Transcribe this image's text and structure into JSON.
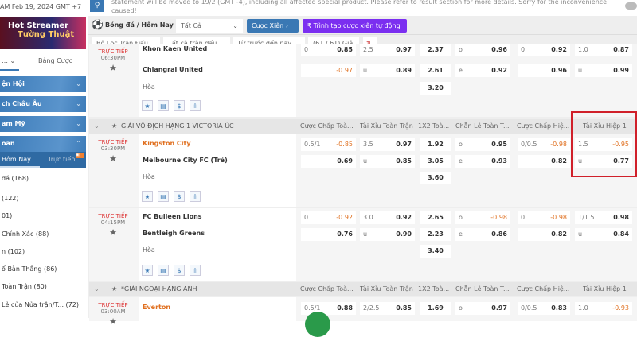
{
  "topbar": {
    "datetime": "AM Feb 19, 2024 GMT +7",
    "notice": "statement will be moved to 19/2 (GMT -4), including all affected special product. Please refer to result section for more details. Sorry for the inconvenience caused!"
  },
  "sidebar": {
    "banner_line1": "Hot Streamer",
    "banner_line2": "Tường Thuật",
    "tab_bet": "Bảng Cược",
    "sections": [
      "ện Hội",
      "ch Châu Âu",
      "am Mỹ",
      "oan"
    ],
    "subtabs": {
      "today": "Hôm Nay",
      "live": "Trực tiếp"
    },
    "items": [
      "đá  (168)",
      "(122)",
      "01)",
      "Chính Xác  (88)",
      "n  (102)",
      "ố Bàn Thắng  (86)",
      "Toàn Trận  (80)",
      "Lẻ của Nửa trận/T...   (72)"
    ]
  },
  "header": {
    "breadcrumb": "Bóng đá / Hôm Nay",
    "select": "Tất Cả",
    "parlay": "Cược Xiên",
    "auto_parlay": "Trình tạo cược xiên tự động"
  },
  "filters": {
    "match_filter": "Bộ Lọc Trận Đấu",
    "all_matches": "Tất cả trận đấu",
    "time": "Từ trước đến nay",
    "count": "(61 / 61) Giải"
  },
  "columns": [
    "Cược Chấp Toà...",
    "Tài Xỉu Toàn Trận",
    "1X2 Toà...",
    "Chẵn Lẻ Toàn T...",
    "Cược Chấp Hiệ...",
    "Tài Xỉu Hiệp 1"
  ],
  "leagues": [
    "GIẢI VÔ ĐỊCH HẠNG 1 VICTORIA ÚC",
    "*GIẢI NGOẠI HẠNG ANH"
  ],
  "matches": [
    {
      "status": "TRỰC TIẾP",
      "time": "06:30PM",
      "home": "Khon Kaen United",
      "away": "Chiangrai United",
      "draw": "Hòa",
      "r1": [
        "0",
        "0.85",
        "2.5",
        "0.97",
        "2.37",
        "o",
        "0.96",
        "0",
        "0.92",
        "1.0",
        "0.87"
      ],
      "r2": [
        "",
        "-0.97",
        "u",
        "0.89",
        "2.61",
        "e",
        "0.92",
        "",
        "0.96",
        "u",
        "0.99"
      ],
      "r3": "3.20"
    },
    {
      "status": "TRỰC TIẾP",
      "time": "03:30PM",
      "home": "Kingston City",
      "away": "Melbourne City FC (Trẻ)",
      "draw": "Hòa",
      "r1": [
        "0.5/1",
        "-0.85",
        "3.5",
        "0.97",
        "1.92",
        "o",
        "0.95",
        "0/0.5",
        "-0.98",
        "1.5",
        "-0.95"
      ],
      "r2": [
        "",
        "0.69",
        "u",
        "0.85",
        "3.05",
        "e",
        "0.93",
        "",
        "0.82",
        "u",
        "0.77"
      ],
      "r3": "3.60"
    },
    {
      "status": "TRỰC TIẾP",
      "time": "04:15PM",
      "home": "FC Bulleen Lions",
      "away": "Bentleigh Greens",
      "draw": "Hòa",
      "r1": [
        "0",
        "-0.92",
        "3.0",
        "0.92",
        "2.65",
        "o",
        "-0.98",
        "0",
        "-0.98",
        "1/1.5",
        "0.98"
      ],
      "r2": [
        "",
        "0.76",
        "u",
        "0.90",
        "2.23",
        "e",
        "0.86",
        "",
        "0.82",
        "u",
        "0.84"
      ],
      "r3": "3.40"
    },
    {
      "status": "TRỰC TIẾP",
      "time": "03:00AM",
      "home": "Everton",
      "r1": [
        "0.5/1",
        "0.88",
        "2/2.5",
        "0.85",
        "1.69",
        "o",
        "0.97",
        "0/0.5",
        "0.83",
        "1.0",
        "-0.93"
      ]
    }
  ],
  "colors": {
    "accent": "#3a78b4",
    "purple": "#7b2ff0",
    "negative": "#e07020",
    "highlight": "#d0202a"
  }
}
